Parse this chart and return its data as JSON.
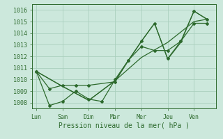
{
  "background_color": "#cce8dc",
  "grid_color": "#aacfbe",
  "line_color": "#2d6a2d",
  "marker_color": "#2d6a2d",
  "xlabel": "Pression niveau de la mer( hPa )",
  "xlabels": [
    "Lun",
    "Sam",
    "Dim",
    "Mar",
    "Mer",
    "Jeu",
    "Ven"
  ],
  "xtick_positions": [
    0,
    1,
    2,
    3,
    4,
    5,
    6
  ],
  "ylim": [
    1007.5,
    1016.5
  ],
  "yticks": [
    1008,
    1009,
    1010,
    1011,
    1012,
    1013,
    1014,
    1015,
    1016
  ],
  "series1_x": [
    0.0,
    0.5,
    1.0,
    1.5,
    2.0,
    2.5,
    3.0,
    3.5,
    4.0,
    4.5,
    5.0,
    5.5,
    6.0,
    6.5
  ],
  "series1_y": [
    1010.7,
    1007.75,
    1008.1,
    1009.0,
    1008.3,
    1008.1,
    1010.0,
    1011.65,
    1013.3,
    1014.85,
    1011.8,
    1013.3,
    1015.9,
    1015.2
  ],
  "series2_x": [
    0.0,
    0.5,
    1.0,
    1.5,
    2.0,
    3.0,
    3.5,
    4.0,
    4.5,
    5.0,
    5.5,
    6.0,
    6.5
  ],
  "series2_y": [
    1010.7,
    1009.2,
    1009.5,
    1009.5,
    1009.5,
    1009.8,
    1011.65,
    1012.85,
    1012.5,
    1012.5,
    1013.3,
    1014.85,
    1014.85
  ],
  "series3_x": [
    0.0,
    1.0,
    2.0,
    3.0,
    4.0,
    5.0,
    6.0,
    6.5
  ],
  "series3_y": [
    1010.7,
    1009.4,
    1008.2,
    1009.9,
    1011.9,
    1013.2,
    1015.0,
    1015.2
  ],
  "series4_x": [
    0.0,
    1.0,
    2.0,
    3.0,
    4.0,
    4.5,
    5.0,
    5.5,
    6.0,
    6.5
  ],
  "series4_y": [
    1010.7,
    1009.4,
    1008.2,
    1009.9,
    1013.3,
    1014.85,
    1011.75,
    1013.2,
    1015.9,
    1015.2
  ]
}
